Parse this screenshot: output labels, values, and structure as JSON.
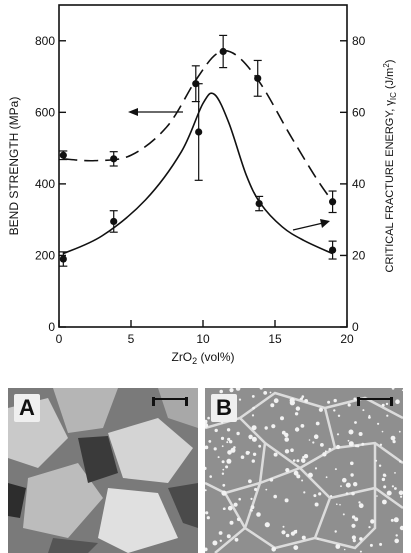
{
  "chart_data": {
    "type": "scatter",
    "title": "",
    "xlabel": "ZrO2 (vol%)",
    "xlabel_main": "ZrO",
    "xlabel_sub": "2",
    "xlabel_rest": " (vol%)",
    "ylabel": "BEND STRENGTH  (MPa)",
    "ylabel_right": "CRITICAL FRACTURE ENERGY, γIC (J/m²)",
    "ylabel_right_main": "CRITICAL FRACTURE ENERGY, γ",
    "ylabel_right_sub": "IC",
    "ylabel_right_units": " (J/m",
    "ylabel_right_sup": "2",
    "ylabel_right_close": ")",
    "xlim": [
      0,
      20
    ],
    "ylim": [
      0,
      900
    ],
    "ylim_right": [
      0,
      90
    ],
    "x_ticks": [
      "0",
      "5",
      "10",
      "15",
      "20"
    ],
    "y_ticks": [
      "0",
      "200",
      "400",
      "600",
      "800"
    ],
    "y_ticks_right": [
      "0",
      "20",
      "40",
      "60",
      "80"
    ],
    "grid": false,
    "series": [
      {
        "axis": "left",
        "line_style": "solid",
        "points": [
          {
            "x": 0.3,
            "y": 190,
            "err": 20
          },
          {
            "x": 3.8,
            "y": 295,
            "err": 30
          },
          {
            "x": 9.7,
            "y": 545,
            "err": 135
          },
          {
            "x": 13.9,
            "y": 345,
            "err": 20
          },
          {
            "x": 19.0,
            "y": 215,
            "err": 25
          }
        ],
        "curve": [
          {
            "x": 0.3,
            "y": 205
          },
          {
            "x": 3,
            "y": 255
          },
          {
            "x": 6,
            "y": 355
          },
          {
            "x": 8.5,
            "y": 490
          },
          {
            "x": 10,
            "y": 625
          },
          {
            "x": 10.8,
            "y": 650
          },
          {
            "x": 11.8,
            "y": 570
          },
          {
            "x": 13.0,
            "y": 425
          },
          {
            "x": 14,
            "y": 345
          },
          {
            "x": 15.5,
            "y": 280
          },
          {
            "x": 17,
            "y": 242
          },
          {
            "x": 19,
            "y": 205
          }
        ]
      },
      {
        "axis": "right",
        "line_style": "dashed",
        "points": [
          {
            "x": 0.3,
            "y": 48,
            "err": 1.2
          },
          {
            "x": 3.8,
            "y": 47,
            "err": 2
          },
          {
            "x": 9.5,
            "y": 68,
            "err": 5
          },
          {
            "x": 11.4,
            "y": 77,
            "err": 4.5
          },
          {
            "x": 13.8,
            "y": 69.5,
            "err": 5
          },
          {
            "x": 19.0,
            "y": 35,
            "err": 3
          }
        ],
        "curve": [
          {
            "x": 0.3,
            "y": 47
          },
          {
            "x": 2.5,
            "y": 46.5
          },
          {
            "x": 5,
            "y": 48
          },
          {
            "x": 7.5,
            "y": 56
          },
          {
            "x": 9.5,
            "y": 69
          },
          {
            "x": 11,
            "y": 76.5
          },
          {
            "x": 12.3,
            "y": 76
          },
          {
            "x": 14,
            "y": 68
          },
          {
            "x": 16,
            "y": 54
          },
          {
            "x": 17.8,
            "y": 42
          },
          {
            "x": 19,
            "y": 35
          }
        ]
      }
    ]
  },
  "micrographs": [
    {
      "label": "A"
    },
    {
      "label": "B"
    }
  ]
}
